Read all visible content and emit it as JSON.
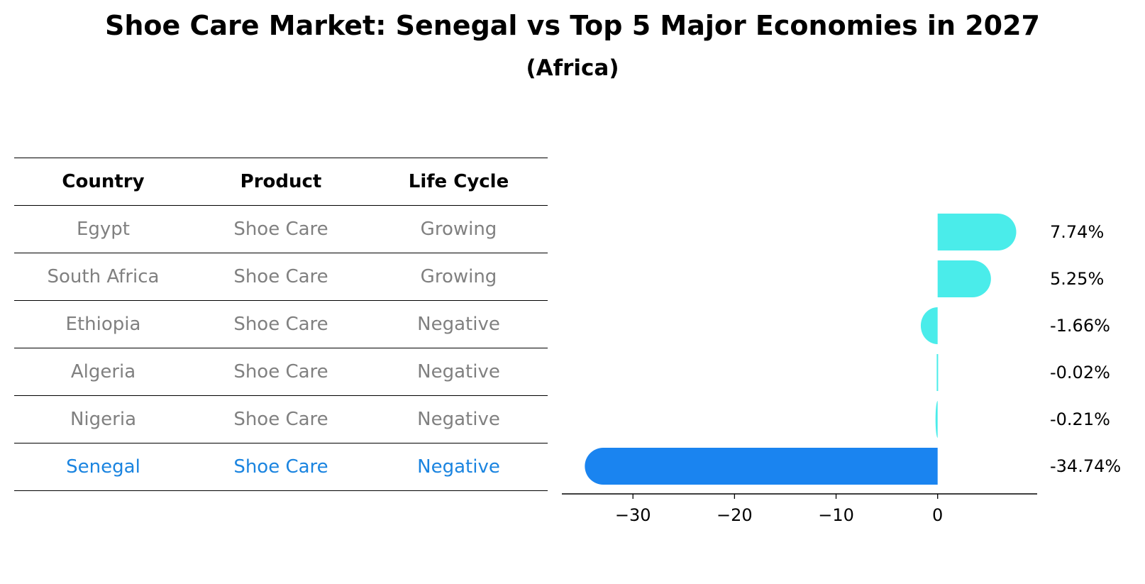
{
  "title": "Shoe Care Market: Senegal vs Top 5 Major Economies in 2027",
  "subtitle": "(Africa)",
  "table": {
    "headers": [
      "Country",
      "Product",
      "Life Cycle"
    ],
    "rows": [
      [
        "Egypt",
        "Shoe Care",
        "Growing"
      ],
      [
        "South Africa",
        "Shoe Care",
        "Growing"
      ],
      [
        "Ethiopia",
        "Shoe Care",
        "Negative"
      ],
      [
        "Algeria",
        "Shoe Care",
        "Negative"
      ],
      [
        "Nigeria",
        "Shoe Care",
        "Negative"
      ],
      [
        "Senegal",
        "Shoe Care",
        "Negative"
      ]
    ],
    "highlight_row": 5
  },
  "colors": {
    "highlight": "#1a84e0",
    "bar": "#4aecea",
    "highlight_bar": "#1a84f0",
    "row_text": "#808080"
  },
  "chart_data": {
    "type": "bar",
    "orientation": "horizontal",
    "categories": [
      "Egypt",
      "South Africa",
      "Ethiopia",
      "Algeria",
      "Nigeria",
      "Senegal"
    ],
    "values": [
      7.74,
      5.25,
      -1.66,
      -0.02,
      -0.21,
      -34.74
    ],
    "data_labels": [
      "7.74%",
      "5.25%",
      "-1.66%",
      "-0.02%",
      "-0.21%",
      "-34.74%"
    ],
    "xlim": [
      -37,
      9.8
    ],
    "xticks": [
      -30,
      -20,
      -10,
      0
    ],
    "xtick_labels": [
      "−30",
      "−20",
      "−10",
      "0"
    ],
    "highlight_category": "Senegal",
    "grid": false
  }
}
